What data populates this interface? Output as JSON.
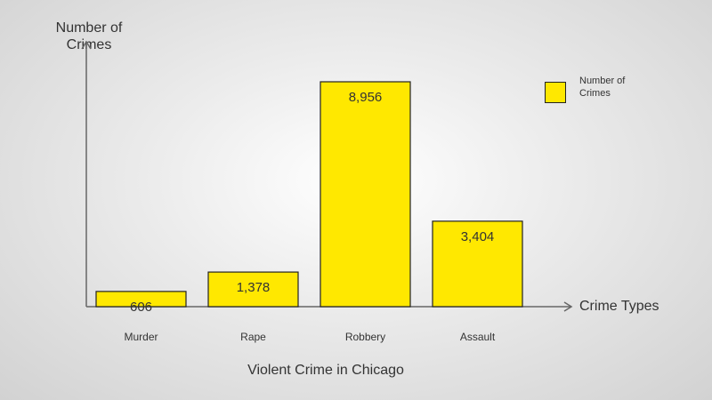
{
  "chart_data": {
    "type": "bar",
    "title": "Violent Crime in Chicago",
    "xlabel": "Crime Types",
    "ylabel": "Number of Crimes",
    "categories": [
      "Murder",
      "Rape",
      "Robbery",
      "Assault"
    ],
    "series": [
      {
        "name": "Number of Crimes",
        "values": [
          606,
          1378,
          8956,
          3404
        ],
        "value_labels": [
          "606",
          "1,378",
          "8,956",
          "3,404"
        ]
      }
    ],
    "ylim": [
      0,
      10000
    ],
    "grid": false,
    "legend_position": "top-right",
    "bar_color": "#ffe800"
  }
}
